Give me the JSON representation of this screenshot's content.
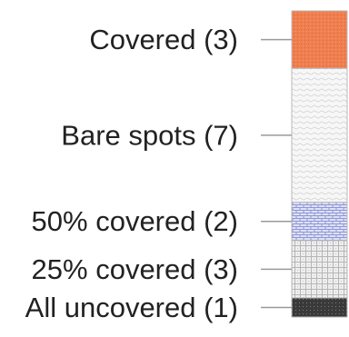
{
  "chart_data": {
    "type": "bar",
    "orientation": "vertical-stacked",
    "title": "",
    "xlabel": "",
    "ylabel": "",
    "total": 16,
    "segments": [
      {
        "label": "All uncovered (1)",
        "name": "All uncovered",
        "value": 1,
        "color": "#3a3a3a",
        "pattern": "dark-dots"
      },
      {
        "label": "25% covered (3)",
        "name": "25% covered",
        "value": 3,
        "color": "#d9d9d9",
        "pattern": "light-grid"
      },
      {
        "label": "50% covered (2)",
        "name": "50% covered",
        "value": 2,
        "color": "#b9bfe6",
        "pattern": "blue-bricks"
      },
      {
        "label": "Bare spots (7)",
        "name": "Bare spots",
        "value": 7,
        "color": "#f2f2f2",
        "pattern": "light-waves"
      },
      {
        "label": "Covered (3)",
        "name": "Covered",
        "value": 3,
        "color": "#f07e4e",
        "pattern": "orange-speckle"
      }
    ]
  }
}
